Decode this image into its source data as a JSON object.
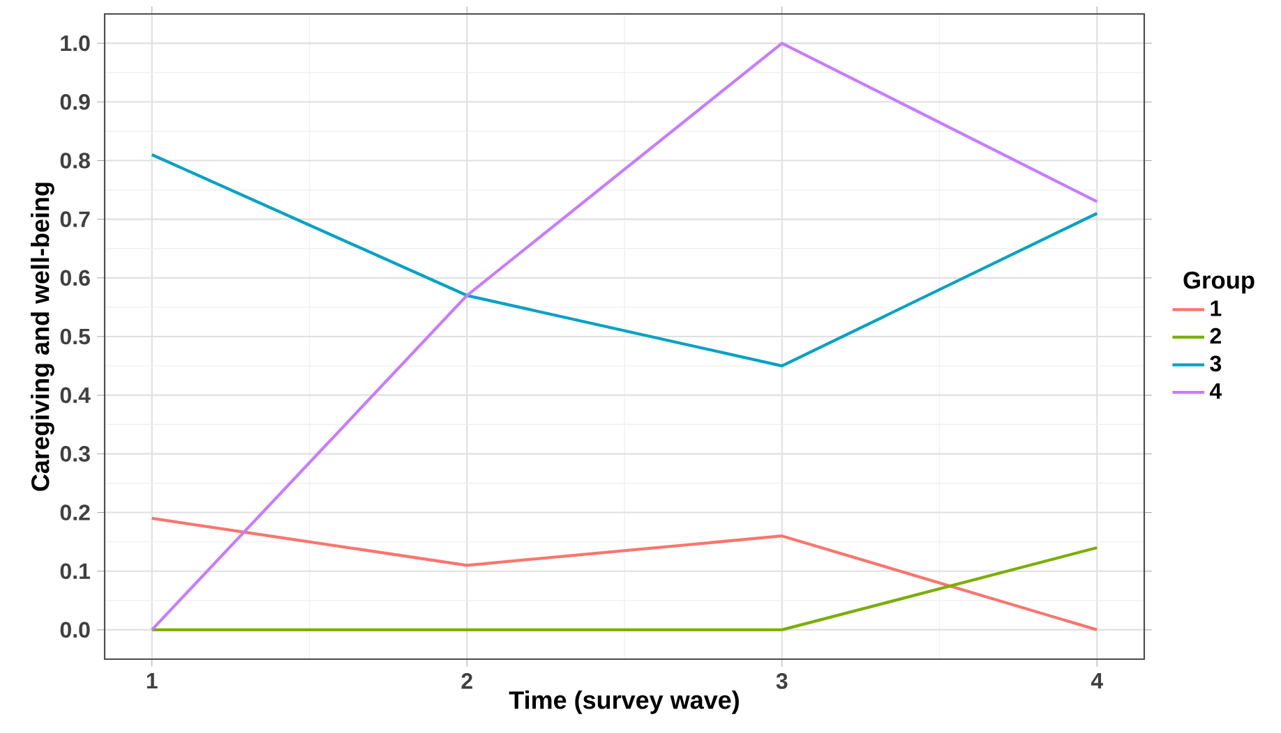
{
  "chart_data": {
    "type": "line",
    "xlabel": "Time (survey wave)",
    "ylabel": "Caregiving and well-being",
    "legend_title": "Group",
    "x": [
      1,
      2,
      3,
      4
    ],
    "series": [
      {
        "name": "1",
        "color": "#F8766D",
        "values": [
          0.19,
          0.11,
          0.16,
          0
        ]
      },
      {
        "name": "2",
        "color": "#7CAE00",
        "values": [
          0,
          0,
          0,
          0.14
        ]
      },
      {
        "name": "3",
        "color": "#00A2C4",
        "values": [
          0.81,
          0.57,
          0.45,
          0.71
        ]
      },
      {
        "name": "4",
        "color": "#C77CFF",
        "values": [
          0,
          0.57,
          1.0,
          0.73
        ]
      }
    ],
    "xlim": [
      0.85,
      4.15
    ],
    "ylim": [
      -0.05,
      1.05
    ],
    "xticks": [
      1,
      2,
      3,
      4
    ],
    "yticks": [
      {
        "value": 0,
        "label": "0.0"
      },
      {
        "value": 0.1,
        "label": "0.1"
      },
      {
        "value": 0.2,
        "label": "0.2"
      },
      {
        "value": 0.3,
        "label": "0.3"
      },
      {
        "value": 0.4,
        "label": "0.4"
      },
      {
        "value": 0.5,
        "label": "0.5"
      },
      {
        "value": 0.6,
        "label": "0.6"
      },
      {
        "value": 0.7,
        "label": "0.7"
      },
      {
        "value": 0.8,
        "label": "0.8"
      },
      {
        "value": 0.9,
        "label": "0.9"
      },
      {
        "value": 1.0,
        "label": "1.0"
      }
    ],
    "grid": true,
    "legend": "right",
    "line_style": "solid",
    "marker": "none"
  }
}
